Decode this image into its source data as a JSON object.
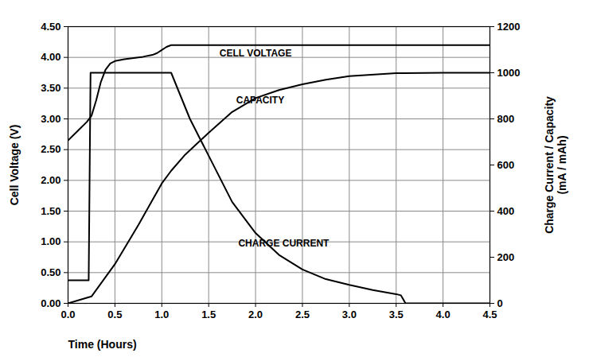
{
  "chart_data": {
    "type": "line",
    "xlabel": "Time (Hours)",
    "ylabel": "Cell Voltage (V)",
    "y2label": "Charge Current / Capacity\n(mA / mAh)",
    "xlim": [
      0,
      4.5
    ],
    "xticks": [
      {
        "value": 0,
        "label": "0.0"
      },
      {
        "value": 0.5,
        "label": "0.5"
      },
      {
        "value": 1,
        "label": "1.0"
      },
      {
        "value": 1.5,
        "label": "1.5"
      },
      {
        "value": 2,
        "label": "2.0"
      },
      {
        "value": 2.5,
        "label": "2.5"
      },
      {
        "value": 3,
        "label": "3.0"
      },
      {
        "value": 3.5,
        "label": "3.5"
      },
      {
        "value": 4,
        "label": "4.0"
      },
      {
        "value": 4.5,
        "label": "4.5"
      }
    ],
    "ylim": [
      0,
      4.5
    ],
    "yticks": [
      {
        "value": 0,
        "label": "0.00"
      },
      {
        "value": 0.5,
        "label": "0.50"
      },
      {
        "value": 1,
        "label": "1.00"
      },
      {
        "value": 1.5,
        "label": "1.50"
      },
      {
        "value": 2,
        "label": "2.00"
      },
      {
        "value": 2.5,
        "label": "2.50"
      },
      {
        "value": 3,
        "label": "3.00"
      },
      {
        "value": 3.5,
        "label": "3.50"
      },
      {
        "value": 4,
        "label": "4.00"
      },
      {
        "value": 4.5,
        "label": "4.50"
      }
    ],
    "y2lim": [
      0,
      1200
    ],
    "y2ticks": [
      0,
      200,
      400,
      600,
      800,
      1000,
      1200
    ],
    "grid": true,
    "series": [
      {
        "name": "CELL VOLTAGE",
        "color": "#000000",
        "axis": "y",
        "x": [
          0,
          0.1,
          0.2,
          0.25,
          0.3,
          0.35,
          0.4,
          0.45,
          0.5,
          0.6,
          0.7,
          0.8,
          0.9,
          0.95,
          1.0,
          1.05,
          1.1,
          4.5
        ],
        "values": [
          2.65,
          2.8,
          2.95,
          3.05,
          3.3,
          3.6,
          3.8,
          3.9,
          3.94,
          3.97,
          3.99,
          4.01,
          4.04,
          4.07,
          4.12,
          4.17,
          4.2,
          4.2
        ],
        "label": {
          "x": 2.0,
          "y": 4.06
        }
      },
      {
        "name": "CAPACITY",
        "color": "#000000",
        "axis": "y2",
        "x": [
          0,
          0.25,
          0.5,
          0.75,
          1.0,
          1.1,
          1.25,
          1.5,
          1.75,
          2.0,
          2.25,
          2.5,
          2.75,
          3.0,
          3.5,
          4.0,
          4.5
        ],
        "values": [
          0,
          30,
          170,
          340,
          520,
          575,
          645,
          740,
          830,
          890,
          925,
          950,
          970,
          985,
          998,
          1000,
          1000
        ],
        "label": {
          "x": 2.05,
          "y": 880
        }
      },
      {
        "name": "CHARGE CURRENT",
        "color": "#000000",
        "axis": "y2",
        "x": [
          0,
          0.22,
          0.24,
          1.1,
          1.2,
          1.3,
          1.4,
          1.5,
          1.75,
          2.0,
          2.25,
          2.5,
          2.75,
          3.0,
          3.25,
          3.5,
          3.55,
          3.6,
          4.5
        ],
        "values": [
          100,
          100,
          1000,
          1000,
          900,
          800,
          720,
          640,
          440,
          305,
          210,
          147,
          105,
          80,
          58,
          40,
          35,
          0,
          0
        ],
        "label": {
          "x": 2.3,
          "y": 260
        }
      }
    ]
  }
}
